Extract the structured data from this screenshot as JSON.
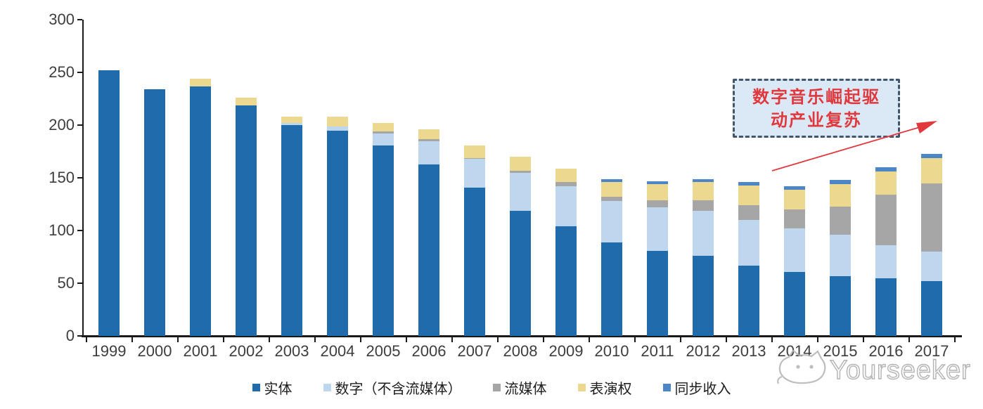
{
  "chart_data": {
    "type": "bar",
    "stacked": true,
    "title": "",
    "xlabel": "",
    "ylabel": "",
    "ylim": [
      0,
      300
    ],
    "yticks": [
      0,
      50,
      100,
      150,
      200,
      250,
      300
    ],
    "grid": false,
    "legend_position": "bottom",
    "axis_color": "#1a1a1a",
    "tick_text_color": "#3d3d3d",
    "categories": [
      "1999",
      "2000",
      "2001",
      "2002",
      "2003",
      "2004",
      "2005",
      "2006",
      "2007",
      "2008",
      "2009",
      "2010",
      "2011",
      "2012",
      "2013",
      "2014",
      "2015",
      "2016",
      "2017"
    ],
    "series": [
      {
        "name": "实体",
        "color": "#1f6bac",
        "values": [
          252,
          234,
          237,
          219,
          200,
          195,
          181,
          163,
          141,
          119,
          104,
          89,
          81,
          76,
          67,
          61,
          57,
          55,
          52
        ]
      },
      {
        "name": "数字（不含流媒体）",
        "color": "#bed7ee",
        "values": [
          0,
          0,
          0,
          0,
          2,
          4,
          11,
          22,
          27,
          36,
          38,
          39,
          41,
          43,
          43,
          41,
          39,
          31,
          28
        ]
      },
      {
        "name": "流媒体",
        "color": "#a6a6a6",
        "values": [
          0,
          0,
          0,
          0,
          0,
          0,
          2,
          2,
          1,
          2,
          4,
          4,
          7,
          10,
          14,
          18,
          27,
          48,
          65
        ]
      },
      {
        "name": "表演权",
        "color": "#ecd88e",
        "values": [
          0,
          0,
          7,
          7,
          6,
          9,
          8,
          9,
          12,
          13,
          13,
          14,
          15,
          17,
          19,
          19,
          21,
          22,
          24
        ]
      },
      {
        "name": "同步收入",
        "color": "#4c86c6",
        "values": [
          0,
          0,
          0,
          0,
          0,
          0,
          0,
          0,
          0,
          0,
          0,
          3,
          3,
          3,
          3,
          3,
          4,
          4,
          4
        ]
      }
    ]
  },
  "annotation": {
    "lines": [
      "数字音乐崛起驱",
      "动产业复苏"
    ],
    "full_text": "数字音乐崛起驱动产业复苏",
    "text_color": "#e0383c",
    "border_color": "#44546a",
    "fill_color": "#dbe9f6",
    "arrow_color": "#e0383c"
  },
  "watermark": {
    "text": "Yourseeker",
    "logo": "cat-outline-icon",
    "color": "#b3b3b3"
  }
}
